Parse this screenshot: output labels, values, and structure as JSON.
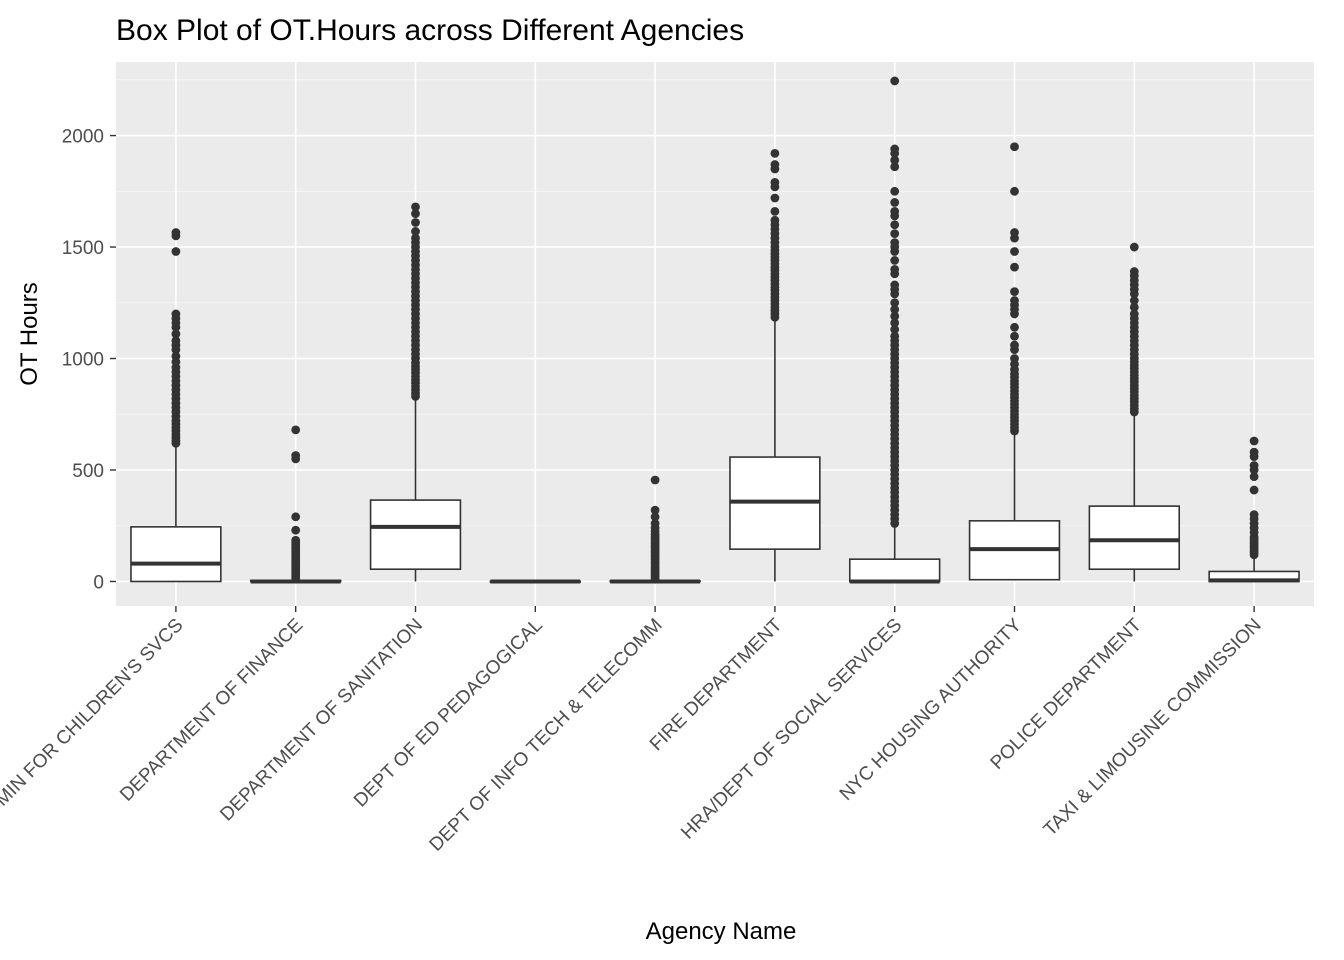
{
  "chart_data": {
    "type": "box",
    "title": "Box Plot of OT.Hours across Different Agencies",
    "xlabel": "Agency Name",
    "ylabel": "OT Hours",
    "ylim": [
      -110,
      2330
    ],
    "yticks": [
      0,
      500,
      1000,
      1500,
      2000
    ],
    "grid": true,
    "categories": [
      "ADMIN FOR CHILDREN'S SVCS",
      "DEPARTMENT OF FINANCE",
      "DEPARTMENT OF SANITATION",
      "DEPT OF ED PEDAGOGICAL",
      "DEPT OF INFO TECH & TELECOMM",
      "FIRE DEPARTMENT",
      "HRA/DEPT OF SOCIAL SERVICES",
      "NYC HOUSING AUTHORITY",
      "POLICE DEPARTMENT",
      "TAXI & LIMOUSINE COMMISSION"
    ],
    "boxes": [
      {
        "min": 0,
        "q1": 0,
        "median": 80,
        "q3": 245,
        "max": 610,
        "outliers": [
          620,
          630,
          645,
          660,
          675,
          690,
          705,
          720,
          740,
          760,
          780,
          800,
          820,
          840,
          860,
          880,
          900,
          920,
          940,
          960,
          985,
          1010,
          1040,
          1060,
          1080,
          1110,
          1140,
          1160,
          1180,
          1200,
          1480,
          1550,
          1565
        ]
      },
      {
        "min": 0,
        "q1": 0,
        "median": 0,
        "q3": 5,
        "max": 10,
        "outliers": [
          15,
          25,
          35,
          45,
          55,
          65,
          75,
          85,
          95,
          105,
          115,
          125,
          135,
          145,
          155,
          165,
          175,
          185,
          230,
          290,
          550,
          565,
          680
        ]
      },
      {
        "min": 0,
        "q1": 55,
        "median": 245,
        "q3": 365,
        "max": 820,
        "outliers": [
          830,
          845,
          860,
          875,
          890,
          905,
          920,
          935,
          950,
          965,
          980,
          1000,
          1020,
          1040,
          1060,
          1080,
          1100,
          1120,
          1140,
          1160,
          1180,
          1200,
          1220,
          1240,
          1260,
          1280,
          1300,
          1320,
          1340,
          1360,
          1380,
          1400,
          1420,
          1440,
          1460,
          1480,
          1500,
          1520,
          1540,
          1570,
          1610,
          1650,
          1680
        ]
      },
      {
        "min": 0,
        "q1": 0,
        "median": 0,
        "q3": 0,
        "max": 0,
        "outliers": []
      },
      {
        "min": 0,
        "q1": 0,
        "median": 0,
        "q3": 2,
        "max": 5,
        "outliers": [
          10,
          20,
          30,
          40,
          50,
          60,
          70,
          80,
          90,
          100,
          110,
          120,
          130,
          140,
          150,
          160,
          170,
          180,
          190,
          200,
          210,
          225,
          240,
          260,
          290,
          320,
          455
        ]
      },
      {
        "min": 0,
        "q1": 145,
        "median": 358,
        "q3": 558,
        "max": 1175,
        "outliers": [
          1185,
          1200,
          1215,
          1230,
          1245,
          1260,
          1275,
          1290,
          1305,
          1320,
          1335,
          1350,
          1365,
          1380,
          1395,
          1410,
          1425,
          1440,
          1455,
          1470,
          1485,
          1500,
          1520,
          1540,
          1560,
          1580,
          1600,
          1620,
          1660,
          1720,
          1770,
          1790,
          1850,
          1870,
          1920
        ]
      },
      {
        "min": 0,
        "q1": 0,
        "median": 0,
        "q3": 100,
        "max": 250,
        "outliers": [
          260,
          280,
          300,
          320,
          340,
          360,
          380,
          400,
          420,
          440,
          460,
          480,
          500,
          520,
          540,
          560,
          580,
          600,
          620,
          640,
          660,
          680,
          700,
          720,
          740,
          760,
          780,
          800,
          820,
          840,
          860,
          880,
          900,
          920,
          940,
          960,
          980,
          1000,
          1020,
          1040,
          1060,
          1080,
          1100,
          1130,
          1160,
          1190,
          1220,
          1250,
          1290,
          1310,
          1330,
          1380,
          1400,
          1440,
          1480,
          1500,
          1520,
          1560,
          1600,
          1640,
          1660,
          1700,
          1750,
          1860,
          1890,
          1920,
          1940,
          2245
        ]
      },
      {
        "min": 5,
        "q1": 8,
        "median": 145,
        "q3": 272,
        "max": 665,
        "outliers": [
          675,
          690,
          705,
          720,
          735,
          750,
          765,
          780,
          795,
          810,
          825,
          840,
          855,
          870,
          885,
          900,
          915,
          930,
          950,
          975,
          1000,
          1040,
          1060,
          1100,
          1140,
          1200,
          1220,
          1240,
          1260,
          1300,
          1410,
          1480,
          1540,
          1565,
          1750,
          1950
        ]
      },
      {
        "min": 0,
        "q1": 55,
        "median": 185,
        "q3": 338,
        "max": 750,
        "outliers": [
          760,
          775,
          790,
          805,
          820,
          835,
          850,
          865,
          880,
          895,
          910,
          925,
          940,
          955,
          970,
          985,
          1000,
          1020,
          1040,
          1060,
          1080,
          1100,
          1120,
          1140,
          1160,
          1180,
          1200,
          1230,
          1260,
          1290,
          1310,
          1330,
          1350,
          1370,
          1390,
          1500
        ]
      },
      {
        "min": 0,
        "q1": 0,
        "median": 5,
        "q3": 45,
        "max": 110,
        "outliers": [
          120,
          130,
          140,
          150,
          160,
          170,
          180,
          190,
          200,
          220,
          240,
          260,
          280,
          300,
          410,
          470,
          500,
          520,
          560,
          580,
          630
        ]
      }
    ]
  }
}
